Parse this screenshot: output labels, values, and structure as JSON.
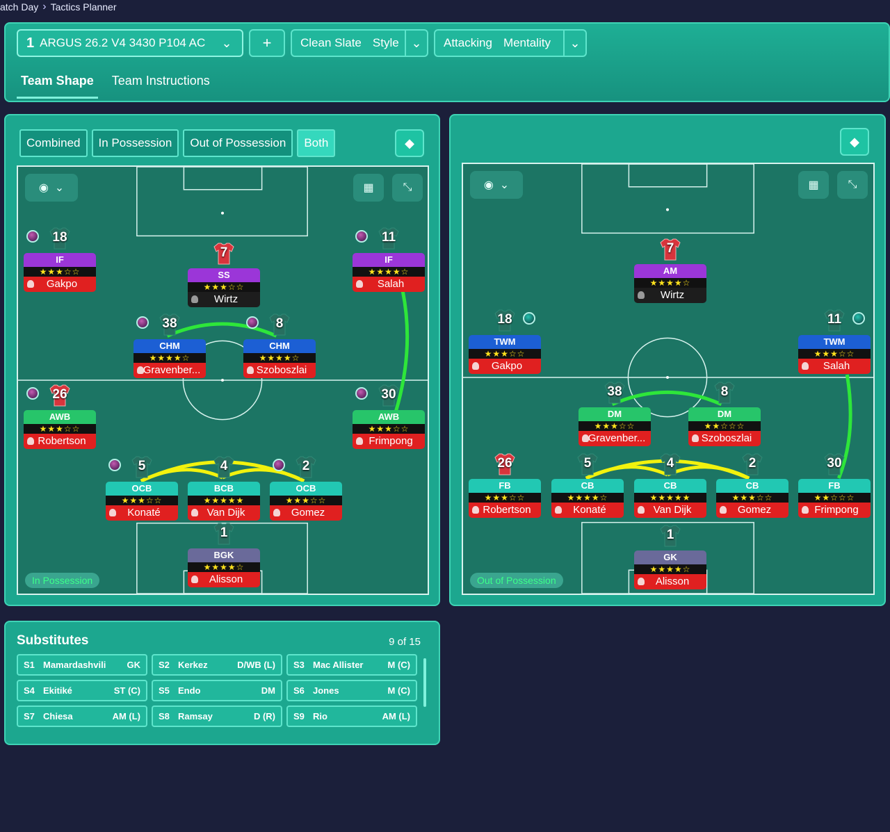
{
  "breadcrumb": {
    "parent": "atch Day",
    "current": "Tactics Planner"
  },
  "toolbar": {
    "tactic_num": "1",
    "tactic_name": "ARGUS 26.2 V4 3430 P104 AC",
    "add": "+",
    "style_label": "Clean Slate",
    "style_suffix": "Style",
    "mentality_label": "Attacking",
    "mentality_suffix": "Mentality"
  },
  "tabs": [
    {
      "label": "Team Shape"
    },
    {
      "label": "Team Instructions"
    }
  ],
  "left": {
    "segments": [
      "Combined",
      "In Possession",
      "Out of Possession",
      "Both"
    ],
    "active_segment": "Both",
    "mode_label": "In Possession",
    "players": [
      {
        "num": "18",
        "role": "IF",
        "stars": "★★★☆☆",
        "name": "Gakpo"
      },
      {
        "num": "7",
        "role": "SS",
        "stars": "★★★☆☆",
        "name": "Wirtz"
      },
      {
        "num": "11",
        "role": "IF",
        "stars": "★★★★☆",
        "name": "Salah"
      },
      {
        "num": "38",
        "role": "CHM",
        "stars": "★★★★☆",
        "name": "Gravenber..."
      },
      {
        "num": "8",
        "role": "CHM",
        "stars": "★★★★☆",
        "name": "Szoboszlai"
      },
      {
        "num": "26",
        "role": "AWB",
        "stars": "★★★☆☆",
        "name": "Robertson"
      },
      {
        "num": "30",
        "role": "AWB",
        "stars": "★★★☆☆",
        "name": "Frimpong"
      },
      {
        "num": "5",
        "role": "OCB",
        "stars": "★★★☆☆",
        "name": "Konaté"
      },
      {
        "num": "4",
        "role": "BCB",
        "stars": "★★★★★",
        "name": "Van Dijk"
      },
      {
        "num": "2",
        "role": "OCB",
        "stars": "★★★☆☆",
        "name": "Gomez"
      },
      {
        "num": "1",
        "role": "BGK",
        "stars": "★★★★☆",
        "name": "Alisson"
      }
    ]
  },
  "right": {
    "mode_label": "Out of Possession",
    "players": [
      {
        "num": "7",
        "role": "AM",
        "stars": "★★★★☆",
        "name": "Wirtz"
      },
      {
        "num": "18",
        "role": "TWM",
        "stars": "★★★☆☆",
        "name": "Gakpo"
      },
      {
        "num": "11",
        "role": "TWM",
        "stars": "★★★☆☆",
        "name": "Salah"
      },
      {
        "num": "38",
        "role": "DM",
        "stars": "★★★☆☆",
        "name": "Gravenber..."
      },
      {
        "num": "8",
        "role": "DM",
        "stars": "★★☆☆☆",
        "name": "Szoboszlai"
      },
      {
        "num": "26",
        "role": "FB",
        "stars": "★★★☆☆",
        "name": "Robertson"
      },
      {
        "num": "5",
        "role": "CB",
        "stars": "★★★★☆",
        "name": "Konaté"
      },
      {
        "num": "4",
        "role": "CB",
        "stars": "★★★★★",
        "name": "Van Dijk"
      },
      {
        "num": "2",
        "role": "CB",
        "stars": "★★★☆☆",
        "name": "Gomez"
      },
      {
        "num": "30",
        "role": "FB",
        "stars": "★★☆☆☆",
        "name": "Frimpong"
      },
      {
        "num": "1",
        "role": "GK",
        "stars": "★★★★☆",
        "name": "Alisson"
      }
    ]
  },
  "subs": {
    "title": "Substitutes",
    "count": "9 of 15",
    "items": [
      {
        "slot": "S1",
        "name": "Mamardashvili",
        "pos": "GK"
      },
      {
        "slot": "S2",
        "name": "Kerkez",
        "pos": "D/WB (L)"
      },
      {
        "slot": "S3",
        "name": "Mac Allister",
        "pos": "M (C)"
      },
      {
        "slot": "S4",
        "name": "Ekitiké",
        "pos": "ST (C)"
      },
      {
        "slot": "S5",
        "name": "Endo",
        "pos": "DM"
      },
      {
        "slot": "S6",
        "name": "Jones",
        "pos": "M (C)"
      },
      {
        "slot": "S7",
        "name": "Chiesa",
        "pos": "AM (L)"
      },
      {
        "slot": "S8",
        "name": "Ramsay",
        "pos": "D (R)"
      },
      {
        "slot": "S9",
        "name": "Rio",
        "pos": "AM (L)"
      }
    ]
  }
}
